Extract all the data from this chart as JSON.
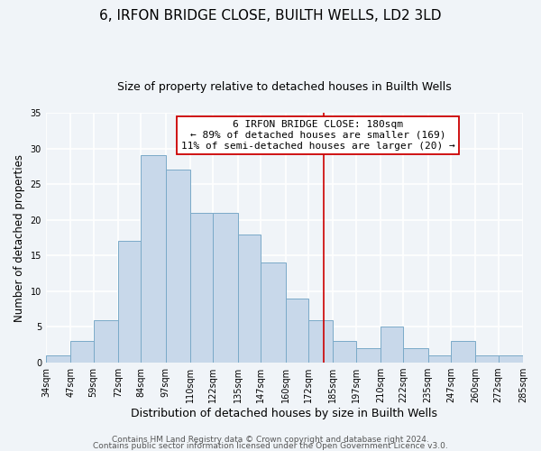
{
  "title": "6, IRFON BRIDGE CLOSE, BUILTH WELLS, LD2 3LD",
  "subtitle": "Size of property relative to detached houses in Builth Wells",
  "xlabel": "Distribution of detached houses by size in Builth Wells",
  "ylabel": "Number of detached properties",
  "bin_edges": [
    34,
    47,
    59,
    72,
    84,
    97,
    110,
    122,
    135,
    147,
    160,
    172,
    185,
    197,
    210,
    222,
    235,
    247,
    260,
    272,
    285
  ],
  "bin_counts": [
    1,
    3,
    6,
    17,
    29,
    27,
    21,
    21,
    18,
    14,
    9,
    6,
    3,
    2,
    5,
    2,
    1,
    3,
    1,
    1
  ],
  "bar_color": "#c8d8ea",
  "bar_edge_color": "#7aaac8",
  "bar_linewidth": 0.7,
  "vline_x": 180,
  "vline_color": "#cc0000",
  "vline_linewidth": 1.2,
  "ylim": [
    0,
    35
  ],
  "yticks": [
    0,
    5,
    10,
    15,
    20,
    25,
    30,
    35
  ],
  "tick_labels": [
    "34sqm",
    "47sqm",
    "59sqm",
    "72sqm",
    "84sqm",
    "97sqm",
    "110sqm",
    "122sqm",
    "135sqm",
    "147sqm",
    "160sqm",
    "172sqm",
    "185sqm",
    "197sqm",
    "210sqm",
    "222sqm",
    "235sqm",
    "247sqm",
    "260sqm",
    "272sqm",
    "285sqm"
  ],
  "annotation_title": "6 IRFON BRIDGE CLOSE: 180sqm",
  "annotation_line1": "← 89% of detached houses are smaller (169)",
  "annotation_line2": "11% of semi-detached houses are larger (20) →",
  "footer1": "Contains HM Land Registry data © Crown copyright and database right 2024.",
  "footer2": "Contains public sector information licensed under the Open Government Licence v3.0.",
  "background_color": "#f0f4f8",
  "grid_color": "#ffffff",
  "title_fontsize": 11,
  "subtitle_fontsize": 9,
  "xlabel_fontsize": 9,
  "ylabel_fontsize": 8.5,
  "tick_fontsize": 7,
  "annotation_fontsize": 8,
  "footer_fontsize": 6.5
}
